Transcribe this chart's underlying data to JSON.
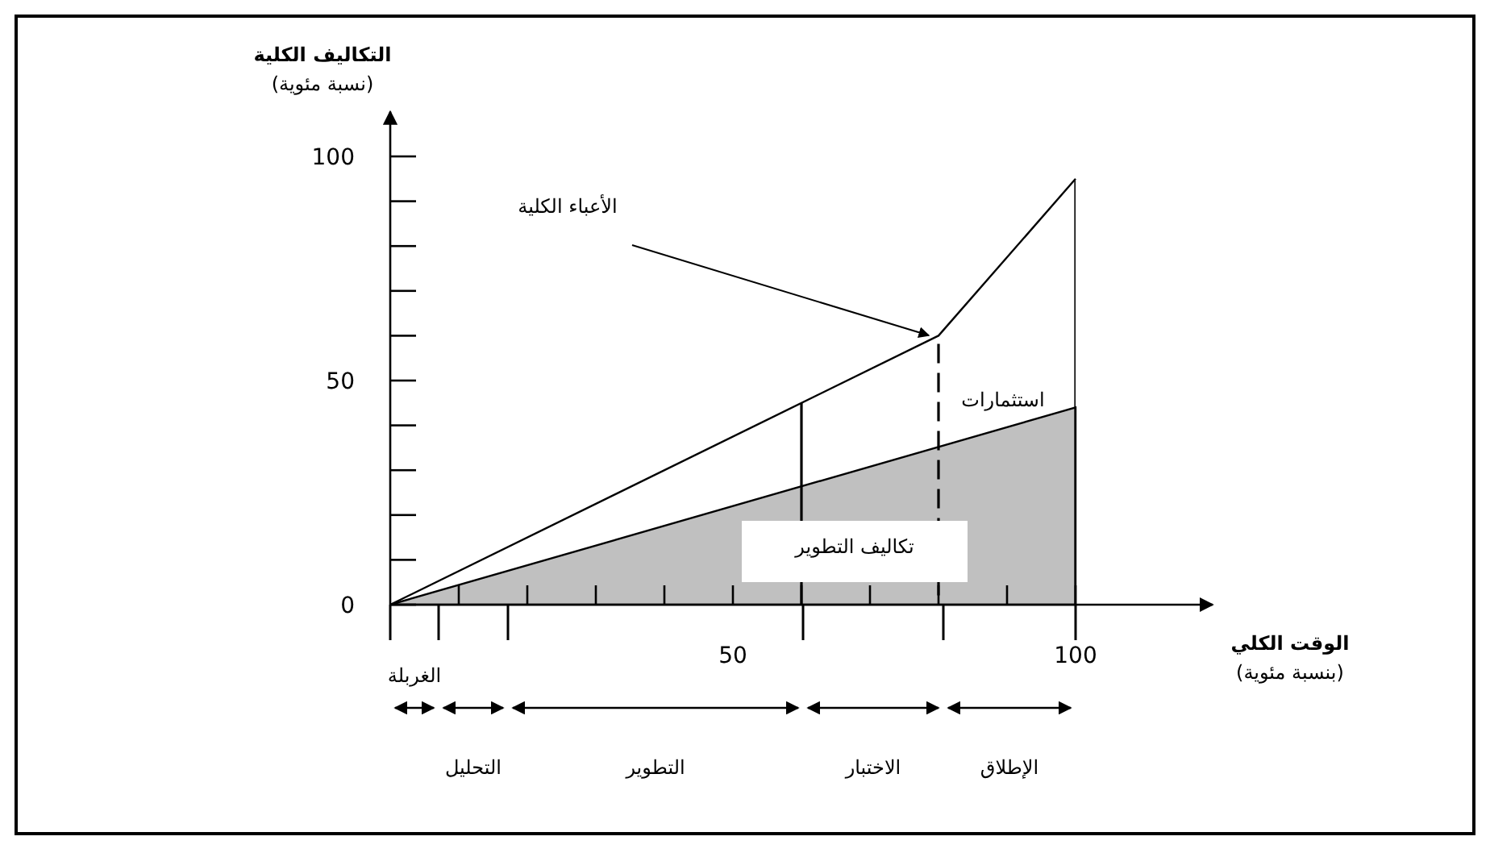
{
  "chart_data": {
    "type": "line",
    "ylabel": "التكاليف الكلية\n(نسبة مئوية)",
    "xlabel": "الوقت الكلي\n(بنسبة مئوية)",
    "xlim": [
      0,
      120
    ],
    "ylim": [
      0,
      110
    ],
    "xticks": [
      {
        "value": 10,
        "label": null
      },
      {
        "value": 20,
        "label": null
      },
      {
        "value": 30,
        "label": null
      },
      {
        "value": 40,
        "label": null
      },
      50,
      {
        "value": 60,
        "label": null
      },
      {
        "value": 70,
        "label": null
      },
      {
        "value": 80,
        "label": null
      },
      {
        "value": 90,
        "label": null
      },
      100
    ],
    "yticks": [
      0,
      {
        "value": 10,
        "label": null
      },
      {
        "value": 20,
        "label": null
      },
      {
        "value": 30,
        "label": null
      },
      {
        "value": 40,
        "label": null
      },
      50,
      {
        "value": 60,
        "label": null
      },
      {
        "value": 70,
        "label": null
      },
      {
        "value": 80,
        "label": null
      },
      {
        "value": 90,
        "label": null
      },
      100
    ],
    "series": [
      {
        "type": "area",
        "color": "#c0c0c0",
        "x": [
          0,
          100
        ],
        "values": [
          0,
          44
        ]
      },
      {
        "color": "#000000",
        "x": [
          0,
          80,
          100
        ],
        "values": [
          0,
          60,
          95
        ]
      }
    ],
    "ref_lines": [
      {
        "axis": "x",
        "value": 60
      },
      {
        "axis": "x",
        "value": 80,
        "line_style": "dashed"
      },
      {
        "axis": "x",
        "value": 100
      }
    ],
    "annotations": [
      "الأعباء الكلية",
      "استثمارات",
      "تكاليف التطوير",
      "الغربلة",
      "التحليل",
      "التطوير",
      "الاختبار",
      "الإطلاق"
    ]
  }
}
